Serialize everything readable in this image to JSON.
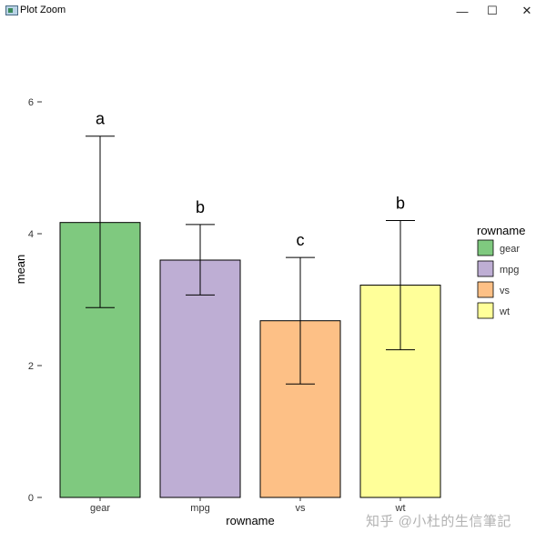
{
  "window": {
    "title": "Plot Zoom",
    "minimize_glyph": "—",
    "maximize_glyph": "☐",
    "close_glyph": "✕"
  },
  "watermark": "知乎 @小杜的生信筆記",
  "chart_data": {
    "type": "bar",
    "categories": [
      "gear",
      "mpg",
      "vs",
      "wt"
    ],
    "values": [
      4.17,
      3.6,
      2.68,
      3.22
    ],
    "error_low": [
      2.88,
      3.07,
      1.72,
      2.24
    ],
    "error_high": [
      5.48,
      4.14,
      3.64,
      4.2
    ],
    "significance_letters": [
      "a",
      "b",
      "c",
      "b"
    ],
    "colors": [
      "#7fc97f",
      "#beaed4",
      "#fdc086",
      "#ffff99"
    ],
    "xlabel": "rowname",
    "ylabel": "mean",
    "ylim": [
      0,
      7
    ],
    "yticks": [
      0,
      2,
      4,
      6
    ],
    "legend": {
      "title": "rowname",
      "entries": [
        "gear",
        "mpg",
        "vs",
        "wt"
      ],
      "placement": "right"
    },
    "grid": false
  }
}
